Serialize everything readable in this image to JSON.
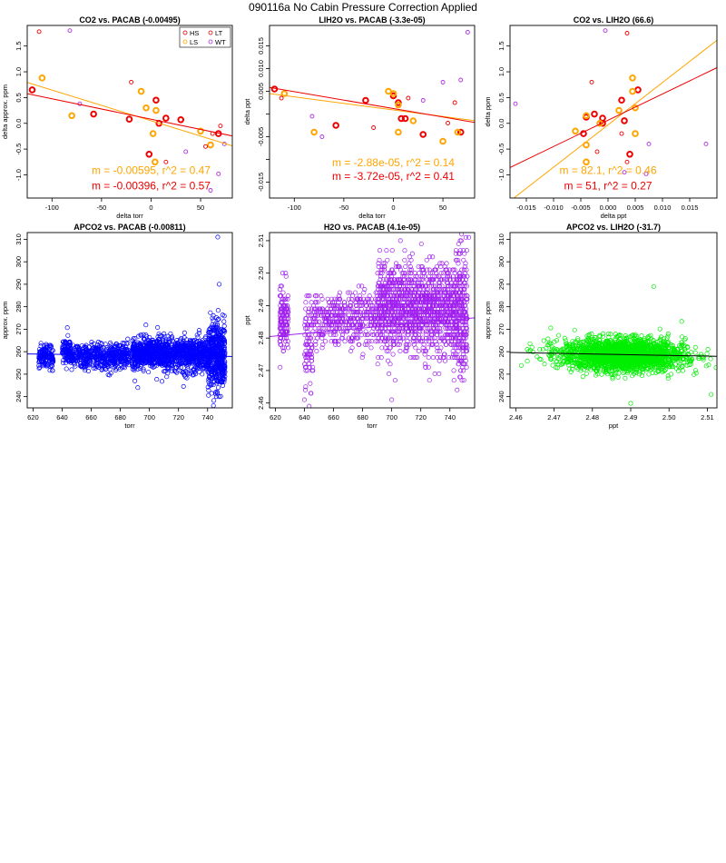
{
  "page": {
    "title": "090116a   No Cabin Pressure Correction Applied"
  },
  "colors": {
    "HS": "#ee0000",
    "LS": "#ffa500",
    "LT": "#ee0000",
    "WT": "#b030e0",
    "blue": "#0000ff",
    "purple": "#a020f0",
    "green": "#00ee00",
    "black": "#000000"
  },
  "chart_data": [
    {
      "id": "p1",
      "type": "scatter",
      "title": "CO2 vs. PACAB (-0.00495)",
      "xlabel": "delta torr",
      "ylabel": "delta approx. ppm",
      "xlim": [
        -125,
        82
      ],
      "ylim": [
        -1.45,
        1.9
      ],
      "xticks": [
        -100,
        -50,
        0,
        50
      ],
      "yticks": [
        -1.0,
        -0.5,
        0.0,
        0.5,
        1.0,
        1.5
      ],
      "xtick_labels": [
        "-100",
        "-50",
        "0",
        "50"
      ],
      "ytick_labels": [
        "-1.0",
        "-0.5",
        "0.0",
        "0.5",
        "1.0",
        "1.5"
      ],
      "legend": {
        "position": "top-right",
        "entries": [
          {
            "label": "HS",
            "color": "#ee0000"
          },
          {
            "label": "LT",
            "color": "#ee0000"
          },
          {
            "label": "LS",
            "color": "#ffa500"
          },
          {
            "label": "WT",
            "color": "#b030e0"
          }
        ]
      },
      "series": [
        {
          "name": "HS",
          "color": "#ee0000",
          "bold": true,
          "points": [
            [
              -120,
              0.65
            ],
            [
              -58,
              0.18
            ],
            [
              -22,
              0.08
            ],
            [
              -2,
              -0.6
            ],
            [
              5,
              0.45
            ],
            [
              8,
              0.0
            ],
            [
              15,
              0.1
            ],
            [
              30,
              0.07
            ],
            [
              68,
              -0.2
            ]
          ]
        },
        {
          "name": "LS",
          "color": "#ffa500",
          "bold": true,
          "points": [
            [
              -110,
              0.88
            ],
            [
              -80,
              0.15
            ],
            [
              -10,
              0.62
            ],
            [
              -5,
              0.3
            ],
            [
              5,
              0.25
            ],
            [
              2,
              -0.2
            ],
            [
              4,
              -0.75
            ],
            [
              50,
              -0.15
            ],
            [
              60,
              -0.42
            ]
          ]
        },
        {
          "name": "LT",
          "color": "#ee0000",
          "bold": false,
          "points": [
            [
              -113,
              1.78
            ],
            [
              -20,
              0.8
            ],
            [
              15,
              -0.75
            ],
            [
              55,
              -0.45
            ],
            [
              62,
              -0.2
            ],
            [
              70,
              -0.05
            ]
          ]
        },
        {
          "name": "WT",
          "color": "#b030e0",
          "bold": false,
          "points": [
            [
              -82,
              1.8
            ],
            [
              -72,
              0.38
            ],
            [
              35,
              -0.55
            ],
            [
              60,
              -1.3
            ],
            [
              68,
              -0.98
            ],
            [
              74,
              -0.4
            ]
          ]
        }
      ],
      "fit_lines": [
        {
          "color": "#ffa500",
          "slope": -0.00595,
          "intercept": 0.05
        },
        {
          "color": "#ee0000",
          "slope": -0.00396,
          "intercept": 0.08
        }
      ],
      "annotations": [
        {
          "text": "m = -0.00595, r^2 = 0.47",
          "color": "#ffa500",
          "x": 0,
          "y": -0.98
        },
        {
          "text": "m = -0.00396, r^2 = 0.57",
          "color": "#ee0000",
          "x": 0,
          "y": -1.28
        }
      ]
    },
    {
      "id": "p2",
      "type": "scatter",
      "title": "LIH2O vs. PACAB (-3.3e-05)",
      "xlabel": "delta torr",
      "ylabel": "delta ppt",
      "xlim": [
        -125,
        82
      ],
      "ylim": [
        -0.0185,
        0.0195
      ],
      "xticks": [
        -100,
        -50,
        0,
        50
      ],
      "yticks": [
        -0.015,
        -0.005,
        0.005,
        0.015
      ],
      "xtick_labels": [
        "-100",
        "-50",
        "0",
        "50"
      ],
      "ytick_labels": [
        "-0.015",
        "-0.005",
        "0.005",
        "0.015"
      ],
      "yticks_minor": [
        -0.01,
        0.0,
        0.01
      ],
      "ytick_minor_labels": [
        "",
        "",
        "0.010"
      ],
      "series": [
        {
          "name": "HS",
          "color": "#ee0000",
          "bold": true,
          "points": [
            [
              -120,
              0.0055
            ],
            [
              -58,
              -0.0025
            ],
            [
              -28,
              0.003
            ],
            [
              0,
              0.004
            ],
            [
              5,
              0.0025
            ],
            [
              8,
              -0.001
            ],
            [
              12,
              -0.001
            ],
            [
              30,
              -0.0045
            ],
            [
              68,
              -0.004
            ]
          ]
        },
        {
          "name": "LS",
          "color": "#ffa500",
          "bold": true,
          "points": [
            [
              -110,
              0.0045
            ],
            [
              -80,
              -0.004
            ],
            [
              -5,
              0.005
            ],
            [
              0,
              0.0045
            ],
            [
              5,
              0.002
            ],
            [
              5,
              -0.004
            ],
            [
              20,
              -0.0015
            ],
            [
              50,
              -0.006
            ],
            [
              65,
              -0.004
            ]
          ]
        },
        {
          "name": "LT",
          "color": "#ee0000",
          "bold": false,
          "points": [
            [
              -113,
              0.0035
            ],
            [
              -20,
              -0.003
            ],
            [
              15,
              0.0035
            ],
            [
              55,
              -0.002
            ],
            [
              62,
              0.0025
            ]
          ]
        },
        {
          "name": "WT",
          "color": "#b030e0",
          "bold": false,
          "points": [
            [
              -82,
              -0.0005
            ],
            [
              -72,
              -0.005
            ],
            [
              30,
              0.003
            ],
            [
              50,
              0.007
            ],
            [
              68,
              0.0075
            ],
            [
              75,
              0.018
            ]
          ]
        }
      ],
      "fit_lines": [
        {
          "color": "#ffa500",
          "slope": -2.88e-05,
          "intercept": 0.0009
        },
        {
          "color": "#ee0000",
          "slope": -3.72e-05,
          "intercept": 0.0012
        }
      ],
      "annotations": [
        {
          "text": "m = -2.88e-05, r^2 = 0.14",
          "color": "#ffa500",
          "x": 0,
          "y": -0.0115
        },
        {
          "text": "m = -3.72e-05, r^2 = 0.41",
          "color": "#ee0000",
          "x": 0,
          "y": -0.0145
        }
      ]
    },
    {
      "id": "p3",
      "type": "scatter",
      "title": "CO2 vs. LIH2O (66.6)",
      "xlabel": "delta ppt",
      "ylabel": "delta ppm",
      "xlim": [
        -0.018,
        0.02
      ],
      "ylim": [
        -1.45,
        1.9
      ],
      "xticks": [
        -0.015,
        -0.01,
        -0.005,
        0.0,
        0.005,
        0.01,
        0.015
      ],
      "yticks": [
        -1.0,
        -0.5,
        0.0,
        0.5,
        1.0,
        1.5
      ],
      "xtick_labels": [
        "-0.015",
        "-0.010",
        "-0.005",
        "0.000",
        "0.005",
        "0.010",
        "0.015"
      ],
      "ytick_labels": [
        "-1.0",
        "-0.5",
        "0.0",
        "0.5",
        "1.0",
        "1.5"
      ],
      "series": [
        {
          "name": "HS",
          "color": "#ee0000",
          "bold": true,
          "points": [
            [
              0.0055,
              0.65
            ],
            [
              -0.0025,
              0.18
            ],
            [
              0.003,
              0.05
            ],
            [
              0.004,
              -0.6
            ],
            [
              0.0025,
              0.45
            ],
            [
              -0.001,
              0.0
            ],
            [
              -0.001,
              0.1
            ],
            [
              -0.0045,
              -0.2
            ],
            [
              -0.004,
              0.12
            ]
          ]
        },
        {
          "name": "LS",
          "color": "#ffa500",
          "bold": true,
          "points": [
            [
              0.0045,
              0.88
            ],
            [
              -0.004,
              0.15
            ],
            [
              0.005,
              0.3
            ],
            [
              0.0045,
              0.62
            ],
            [
              0.002,
              0.25
            ],
            [
              -0.004,
              -0.42
            ],
            [
              -0.0015,
              0.0
            ],
            [
              -0.006,
              -0.15
            ],
            [
              -0.004,
              -0.75
            ],
            [
              0.005,
              -0.2
            ]
          ]
        },
        {
          "name": "LT",
          "color": "#ee0000",
          "bold": false,
          "points": [
            [
              0.0035,
              1.75
            ],
            [
              -0.003,
              0.8
            ],
            [
              0.0035,
              -0.75
            ],
            [
              -0.002,
              -0.55
            ],
            [
              0.0025,
              -0.2
            ]
          ]
        },
        {
          "name": "WT",
          "color": "#b030e0",
          "bold": false,
          "points": [
            [
              -0.0005,
              1.8
            ],
            [
              -0.017,
              0.38
            ],
            [
              0.003,
              -0.95
            ],
            [
              0.007,
              -0.98
            ],
            [
              0.0075,
              -0.4
            ],
            [
              0.018,
              -0.4
            ]
          ]
        }
      ],
      "fit_lines": [
        {
          "color": "#ffa500",
          "slope": 82.1,
          "intercept": -0.03
        },
        {
          "color": "#ee0000",
          "slope": 51,
          "intercept": 0.06
        }
      ],
      "annotations": [
        {
          "text": "m = 82.1, r^2 = 0.46",
          "color": "#ffa500",
          "x": 0.0,
          "y": -0.98
        },
        {
          "text": "m = 51, r^2 = 0.27",
          "color": "#ee0000",
          "x": 0.0,
          "y": -1.28
        }
      ]
    },
    {
      "id": "p4",
      "type": "scatter",
      "title": "APCO2 vs. PACAB (-0.00811)",
      "xlabel": "torr",
      "ylabel": "approx. ppm",
      "xlim": [
        616,
        757
      ],
      "ylim": [
        235,
        313
      ],
      "xticks": [
        620,
        640,
        660,
        680,
        700,
        720,
        740
      ],
      "yticks": [
        240,
        250,
        260,
        270,
        280,
        290,
        300,
        310
      ],
      "xtick_labels": [
        "620",
        "640",
        "660",
        "680",
        "700",
        "720",
        "740"
      ],
      "ytick_labels": [
        "240",
        "250",
        "260",
        "270",
        "280",
        "290",
        "300",
        "310"
      ],
      "color": "#0000ff",
      "fit_lines": [
        {
          "color": "#0000ff",
          "slope": -0.00811,
          "intercept": 264.0
        }
      ]
    },
    {
      "id": "p5",
      "type": "scatter",
      "title": "H2O vs. PACAB (4.1e-05)",
      "xlabel": "torr",
      "ylabel": "ppt",
      "xlim": [
        616,
        757
      ],
      "ylim": [
        2.4585,
        2.5125
      ],
      "xticks": [
        620,
        640,
        660,
        680,
        700,
        720,
        740
      ],
      "yticks": [
        2.46,
        2.47,
        2.48,
        2.49,
        2.5,
        2.51
      ],
      "xtick_labels": [
        "620",
        "640",
        "660",
        "680",
        "700",
        "720",
        "740"
      ],
      "ytick_labels": [
        "2.46",
        "2.47",
        "2.48",
        "2.49",
        "2.50",
        "2.51"
      ],
      "color": "#a020f0",
      "fit_lines": [
        {
          "color": "#a020f0",
          "slope": 4.1e-05,
          "intercept": 2.4552
        }
      ]
    },
    {
      "id": "p6",
      "type": "scatter",
      "title": "APCO2 vs. LIH2O (-31.7)",
      "xlabel": "ppt",
      "ylabel": "approx. ppm",
      "xlim": [
        2.4585,
        2.5125
      ],
      "ylim": [
        235,
        313
      ],
      "xticks": [
        2.46,
        2.47,
        2.48,
        2.49,
        2.5,
        2.51
      ],
      "yticks": [
        240,
        250,
        260,
        270,
        280,
        290,
        300,
        310
      ],
      "xtick_labels": [
        "2.46",
        "2.47",
        "2.48",
        "2.49",
        "2.50",
        "2.51"
      ],
      "ytick_labels": [
        "240",
        "250",
        "260",
        "270",
        "280",
        "290",
        "300",
        "310"
      ],
      "color": "#00ee00",
      "fit_lines": [
        {
          "color": "#000000",
          "slope": -31.7,
          "intercept": 337.6
        }
      ]
    }
  ]
}
